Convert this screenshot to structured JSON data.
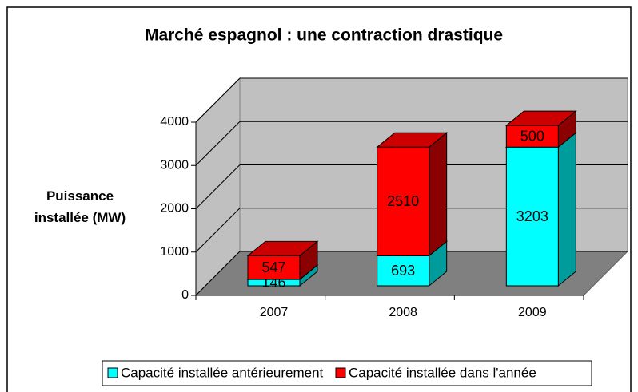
{
  "chart_data": {
    "type": "bar3d-stacked",
    "title": "Marché espagnol : une contraction drastique",
    "ylabel": "Puissance installée (MW)",
    "categories": [
      "2007",
      "2008",
      "2009"
    ],
    "series": [
      {
        "name": "Capacité installée antérieurement",
        "color": "#00ffff",
        "side": "#009c9c",
        "top": "#80ffff",
        "values": [
          146,
          693,
          3203
        ]
      },
      {
        "name": "Capacité installée dans l'année",
        "color": "#ff0000",
        "side": "#8b0000",
        "top": "#cc0000",
        "values": [
          547,
          2510,
          500
        ]
      }
    ],
    "ylim": [
      0,
      4000
    ],
    "yticks": [
      0,
      1000,
      2000,
      3000,
      4000
    ],
    "grid": true,
    "legend": "bottom"
  }
}
